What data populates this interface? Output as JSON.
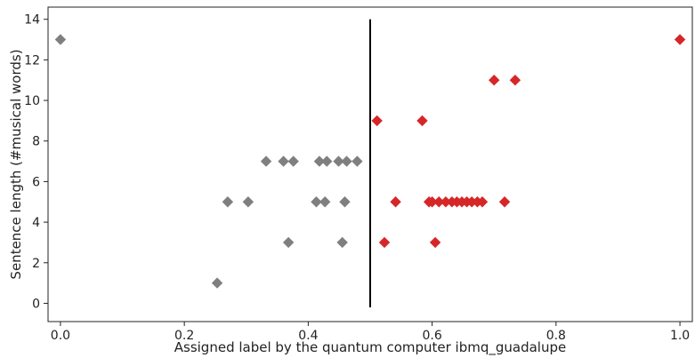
{
  "chart_data": {
    "type": "scatter",
    "title": "",
    "xlabel": "Assigned label by the quantum computer ibmq_guadalupe",
    "ylabel": "Sentence length (#musical words)",
    "xlim": [
      -0.02,
      1.02
    ],
    "ylim": [
      -0.9,
      14.6
    ],
    "xticks": [
      0.0,
      0.2,
      0.4,
      0.6,
      0.8,
      1.0
    ],
    "xtick_labels": [
      "0.0",
      "0.2",
      "0.4",
      "0.6",
      "0.8",
      "1.0"
    ],
    "yticks": [
      0,
      2,
      4,
      6,
      8,
      10,
      12,
      14
    ],
    "ytick_labels": [
      "0",
      "2",
      "4",
      "6",
      "8",
      "10",
      "12",
      "14"
    ],
    "grid": false,
    "marker": "diamond",
    "threshold": {
      "x": 0.5,
      "y_range": [
        -0.2,
        14
      ],
      "color": "#000000"
    },
    "series": [
      {
        "color": "#7f7f7f",
        "points": [
          [
            0.0,
            13
          ],
          [
            0.253,
            1
          ],
          [
            0.27,
            5
          ],
          [
            0.303,
            5
          ],
          [
            0.332,
            7
          ],
          [
            0.36,
            7
          ],
          [
            0.368,
            3
          ],
          [
            0.376,
            7
          ],
          [
            0.413,
            5
          ],
          [
            0.418,
            7
          ],
          [
            0.427,
            5
          ],
          [
            0.43,
            7
          ],
          [
            0.449,
            7
          ],
          [
            0.455,
            3
          ],
          [
            0.459,
            5
          ],
          [
            0.462,
            7
          ],
          [
            0.479,
            7
          ]
        ]
      },
      {
        "color": "#d62728",
        "points": [
          [
            0.511,
            9
          ],
          [
            0.523,
            3
          ],
          [
            0.541,
            5
          ],
          [
            0.584,
            9
          ],
          [
            0.595,
            5
          ],
          [
            0.6,
            5
          ],
          [
            0.605,
            3
          ],
          [
            0.611,
            5
          ],
          [
            0.622,
            5
          ],
          [
            0.632,
            5
          ],
          [
            0.64,
            5
          ],
          [
            0.648,
            5
          ],
          [
            0.656,
            5
          ],
          [
            0.664,
            5
          ],
          [
            0.673,
            5
          ],
          [
            0.681,
            5
          ],
          [
            0.7,
            11
          ],
          [
            0.717,
            5
          ],
          [
            0.734,
            11
          ],
          [
            1.0,
            13
          ]
        ]
      }
    ]
  }
}
